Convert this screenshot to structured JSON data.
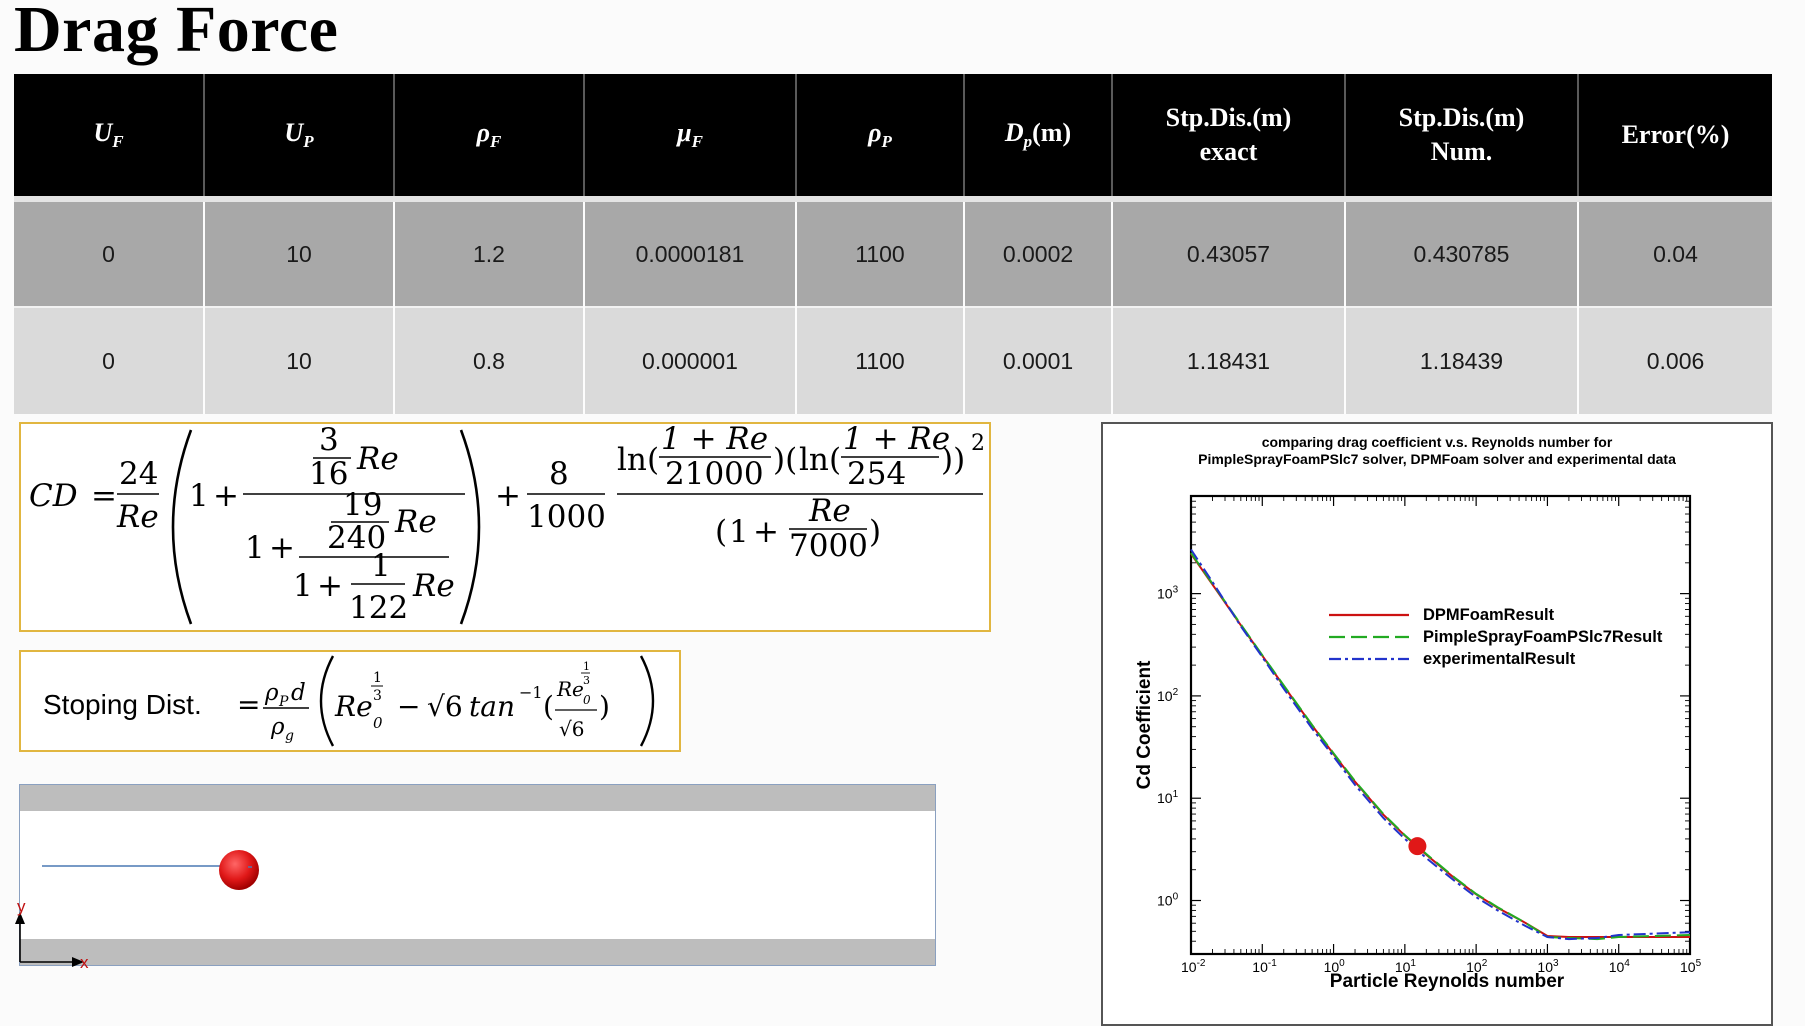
{
  "title": "Drag Force",
  "table": {
    "headers": [
      {
        "main": "U",
        "sub": "F"
      },
      {
        "main": "U",
        "sub": "P"
      },
      {
        "main": "ρ",
        "sub": "F"
      },
      {
        "main": "μ",
        "sub": "F"
      },
      {
        "main": "ρ",
        "sub": "P"
      },
      {
        "main": "D",
        "sub": "p",
        "suffix": "(m)"
      },
      {
        "line1": "Stp.Dis.(m)",
        "line2": "exact"
      },
      {
        "line1": "Stp.Dis.(m)",
        "line2": "Num."
      },
      {
        "line1": "Error(%)"
      }
    ],
    "rows": [
      [
        "0",
        "10",
        "1.2",
        "0.0000181",
        "1100",
        "0.0002",
        "0.43057",
        "0.430785",
        "0.04"
      ],
      [
        "0",
        "10",
        "0.8",
        "0.000001",
        "1100",
        "0.0001",
        "1.18431",
        "1.18439",
        "0.006"
      ]
    ]
  },
  "formula_cd": {
    "lhs": "CD",
    "eq": "=",
    "n24": "24",
    "re": "Re",
    "one": "1",
    "plus": "+",
    "n3": "3",
    "n16": "16",
    "n19": "19",
    "n240": "240",
    "n122": "122",
    "n8": "8",
    "n1000": "1000",
    "ln": "ln",
    "onePlusRe": "1 + Re",
    "n21000": "21000",
    "n254": "254",
    "n7000": "7000",
    "sq": "2"
  },
  "formula_stop": {
    "label": "Stoping Dist.",
    "eq": "=",
    "rho_p": "ρ",
    "sub_p": "P",
    "d": "d",
    "rho_g": "ρ",
    "sub_g": "g",
    "re": "Re",
    "zero": "0",
    "one": "1",
    "three": "3",
    "minus": "−",
    "sqrt6": "√6",
    "tan": "tan",
    "inv": "−1"
  },
  "diagram": {
    "y_label": "y",
    "x_label": "x",
    "particle_color": "#e01818"
  },
  "chart_data": {
    "type": "line",
    "title": "comparing drag coefficient v.s. Reynolds number for PimpleSprayFoamPSlc7 solver,  DPMFoam solver and experimental data",
    "title_lines": [
      "comparing drag coefficient v.s. Reynolds number for",
      "PimpleSprayFoamPSlc7 solver,  DPMFoam solver and experimental data"
    ],
    "xlabel": "Particle Reynolds number",
    "ylabel": "Cd Coefficient",
    "xscale": "log",
    "yscale": "log",
    "xlim": [
      0.01,
      100000
    ],
    "ylim": [
      0.3,
      9000
    ],
    "x_ticks": [
      "10-2",
      "10-1",
      "100",
      "101",
      "102",
      "103",
      "104",
      "105"
    ],
    "y_ticks": [
      "100",
      "101",
      "102",
      "103"
    ],
    "legend_position": "top-right",
    "series": [
      {
        "name": "DPMFoamResult",
        "color": "#cc1111",
        "dash": "solid",
        "x": [
          0.01,
          0.02,
          0.05,
          0.1,
          0.2,
          0.5,
          1,
          2,
          5,
          10,
          20,
          50,
          100,
          200,
          500,
          1000,
          2000,
          5000,
          10000,
          100000
        ],
        "y": [
          2450,
          1225,
          491,
          247,
          125,
          51.5,
          27,
          14.5,
          6.9,
          4.3,
          2.8,
          1.65,
          1.15,
          0.85,
          0.6,
          0.45,
          0.44,
          0.44,
          0.44,
          0.44
        ]
      },
      {
        "name": "PimpleSprayFoamPSlc7Result",
        "color": "#22aa22",
        "dash": "dashed",
        "x": [
          0.01,
          0.02,
          0.05,
          0.1,
          0.2,
          0.5,
          1,
          2,
          5,
          10,
          20,
          50,
          100,
          200,
          500,
          1000,
          2000,
          5000,
          10000,
          100000
        ],
        "y": [
          2500,
          1250,
          500,
          250,
          127,
          52,
          27.5,
          14.7,
          7.0,
          4.35,
          2.85,
          1.67,
          1.16,
          0.86,
          0.6,
          0.44,
          0.43,
          0.42,
          0.44,
          0.46
        ]
      },
      {
        "name": "experimentalResult",
        "color": "#2233cc",
        "dash": "dashdot",
        "x": [
          0.01,
          0.02,
          0.05,
          0.1,
          0.2,
          0.5,
          1,
          2,
          5,
          10,
          20,
          50,
          100,
          200,
          500,
          1000,
          2000,
          5000,
          10000,
          100000
        ],
        "y": [
          2700,
          1300,
          480,
          240,
          118,
          48,
          25.5,
          13.5,
          6.4,
          4.0,
          2.6,
          1.55,
          1.08,
          0.8,
          0.56,
          0.44,
          0.42,
          0.43,
          0.46,
          0.49
        ]
      }
    ],
    "marker": {
      "x": 15,
      "y": 3.4,
      "color": "#e01818"
    }
  }
}
